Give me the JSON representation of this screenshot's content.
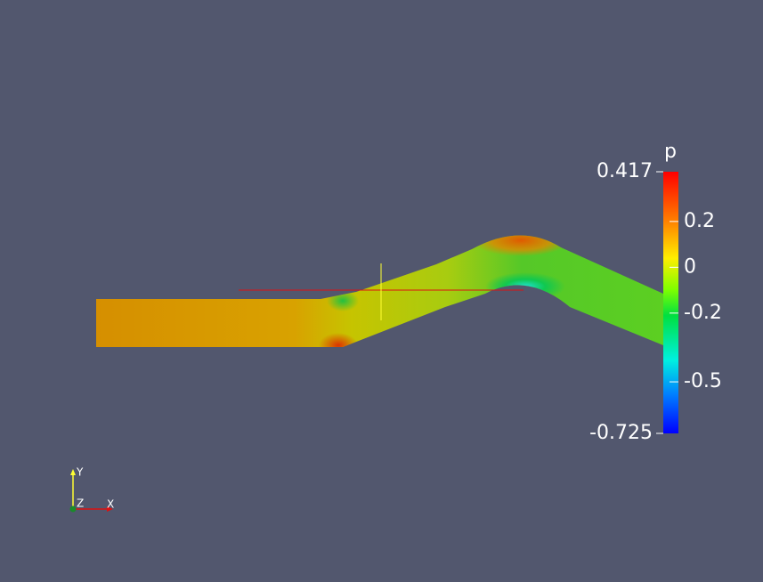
{
  "colorbar": {
    "title": "p",
    "range": [
      -0.725,
      0.417
    ],
    "ticks": [
      0.2,
      0,
      -0.2,
      -0.5
    ]
  },
  "axes": {
    "x": "X",
    "y": "Y",
    "z": "Z"
  }
}
